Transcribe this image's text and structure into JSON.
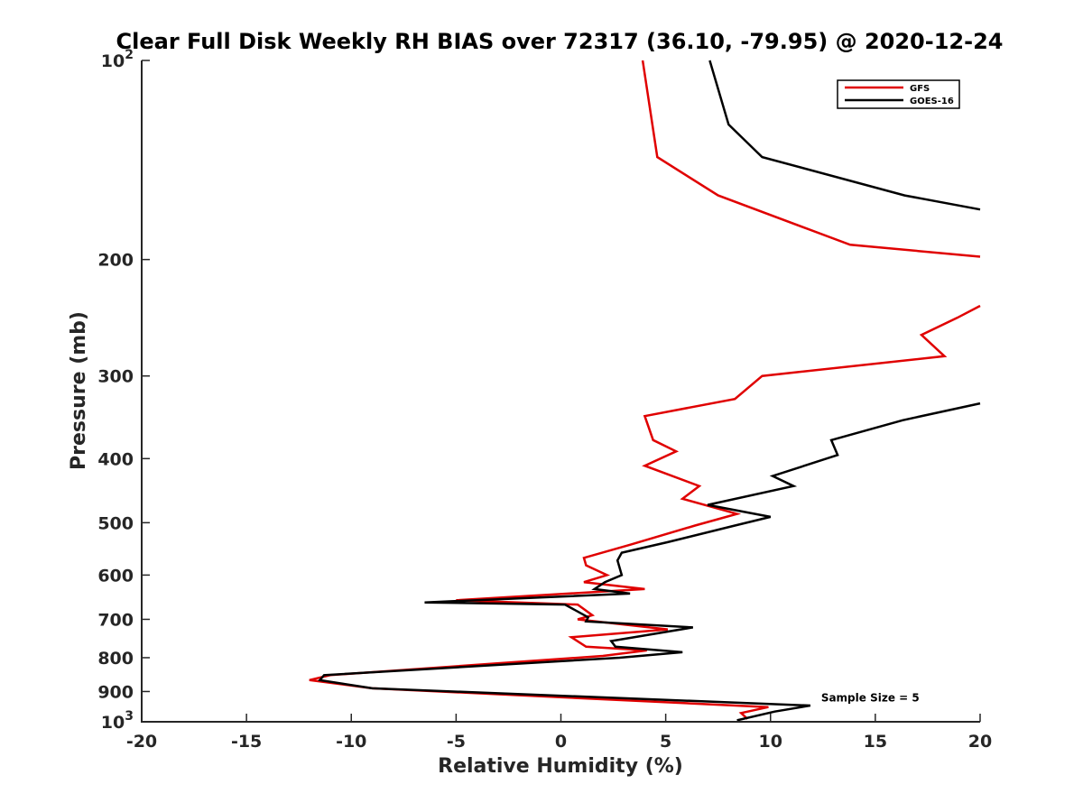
{
  "chart_data": {
    "type": "line",
    "title": "Clear Full Disk Weekly RH BIAS over 72317 (36.10, -79.95) @ 2020-12-24",
    "xlabel": "Relative Humidity (%)",
    "ylabel": "Pressure (mb)",
    "xlim": [
      -20,
      20
    ],
    "ylim": [
      100,
      1000
    ],
    "y_scale": "log",
    "y_reversed": true,
    "grid": false,
    "legend_position": "top-right",
    "x_ticks": [
      "-20",
      "-15",
      "-10",
      "-5",
      "0",
      "5",
      "10",
      "15",
      "20"
    ],
    "y_ticks": [
      {
        "value": 100,
        "label": "10",
        "sup": "2"
      },
      {
        "value": 200,
        "label": "200"
      },
      {
        "value": 300,
        "label": "300"
      },
      {
        "value": 400,
        "label": "400"
      },
      {
        "value": 500,
        "label": "500"
      },
      {
        "value": 600,
        "label": "600"
      },
      {
        "value": 700,
        "label": "700"
      },
      {
        "value": 800,
        "label": "800"
      },
      {
        "value": 900,
        "label": "900"
      },
      {
        "value": 1000,
        "label": "10",
        "sup": "3"
      }
    ],
    "series": [
      {
        "name": "GFS",
        "color": "#e00000",
        "segments": [
          [
            [
              3.9,
              100
            ],
            [
              4.6,
              140
            ],
            [
              7.5,
              160
            ],
            [
              13.8,
              190
            ],
            [
              20.0,
              198
            ]
          ],
          [
            [
              20.0,
              235
            ],
            [
              18.9,
              245
            ],
            [
              17.2,
              260
            ],
            [
              18.3,
              280
            ],
            [
              9.6,
              300
            ],
            [
              8.3,
              325
            ],
            [
              4.0,
              345
            ],
            [
              4.4,
              375
            ],
            [
              5.5,
              390
            ],
            [
              4.0,
              410
            ],
            [
              6.6,
              440
            ],
            [
              5.8,
              460
            ],
            [
              8.4,
              485
            ],
            [
              6.4,
              505
            ],
            [
              3.3,
              540
            ],
            [
              1.1,
              565
            ],
            [
              1.2,
              580
            ],
            [
              2.2,
              600
            ],
            [
              1.1,
              615
            ],
            [
              4.0,
              630
            ],
            [
              -5.0,
              655
            ],
            [
              0.8,
              665
            ],
            [
              1.5,
              690
            ],
            [
              0.8,
              700
            ],
            [
              5.1,
              725
            ],
            [
              0.5,
              745
            ],
            [
              1.2,
              770
            ],
            [
              4.1,
              780
            ],
            [
              2.0,
              795
            ],
            [
              -11.0,
              850
            ],
            [
              -12.0,
              865
            ],
            [
              -9.0,
              890
            ],
            [
              9.9,
              950
            ],
            [
              8.6,
              970
            ],
            [
              8.9,
              990
            ]
          ]
        ]
      },
      {
        "name": "GOES-16",
        "color": "#000000",
        "segments": [
          [
            [
              7.1,
              100
            ],
            [
              8.0,
              125
            ],
            [
              9.6,
              140
            ],
            [
              16.4,
              160
            ],
            [
              20.0,
              168
            ]
          ],
          [
            [
              20.0,
              330
            ],
            [
              16.3,
              350
            ],
            [
              12.9,
              375
            ],
            [
              13.2,
              395
            ],
            [
              10.1,
              425
            ],
            [
              11.1,
              440
            ],
            [
              7.0,
              470
            ],
            [
              10.0,
              490
            ],
            [
              8.3,
              505
            ],
            [
              5.1,
              535
            ],
            [
              2.9,
              555
            ],
            [
              2.7,
              570
            ],
            [
              2.9,
              600
            ],
            [
              2.1,
              615
            ],
            [
              1.6,
              630
            ],
            [
              3.3,
              640
            ],
            [
              -6.5,
              660
            ],
            [
              0.2,
              665
            ],
            [
              1.3,
              695
            ],
            [
              1.2,
              705
            ],
            [
              6.3,
              720
            ],
            [
              2.4,
              755
            ],
            [
              2.6,
              770
            ],
            [
              5.8,
              785
            ],
            [
              2.8,
              800
            ],
            [
              -11.3,
              850
            ],
            [
              -11.5,
              865
            ],
            [
              -9.0,
              890
            ],
            [
              11.9,
              945
            ],
            [
              10.2,
              965
            ],
            [
              8.4,
              995
            ]
          ]
        ]
      }
    ],
    "annotations": [
      {
        "text": "Sample Size = 5",
        "x": 12.5,
        "y": 920
      }
    ]
  }
}
